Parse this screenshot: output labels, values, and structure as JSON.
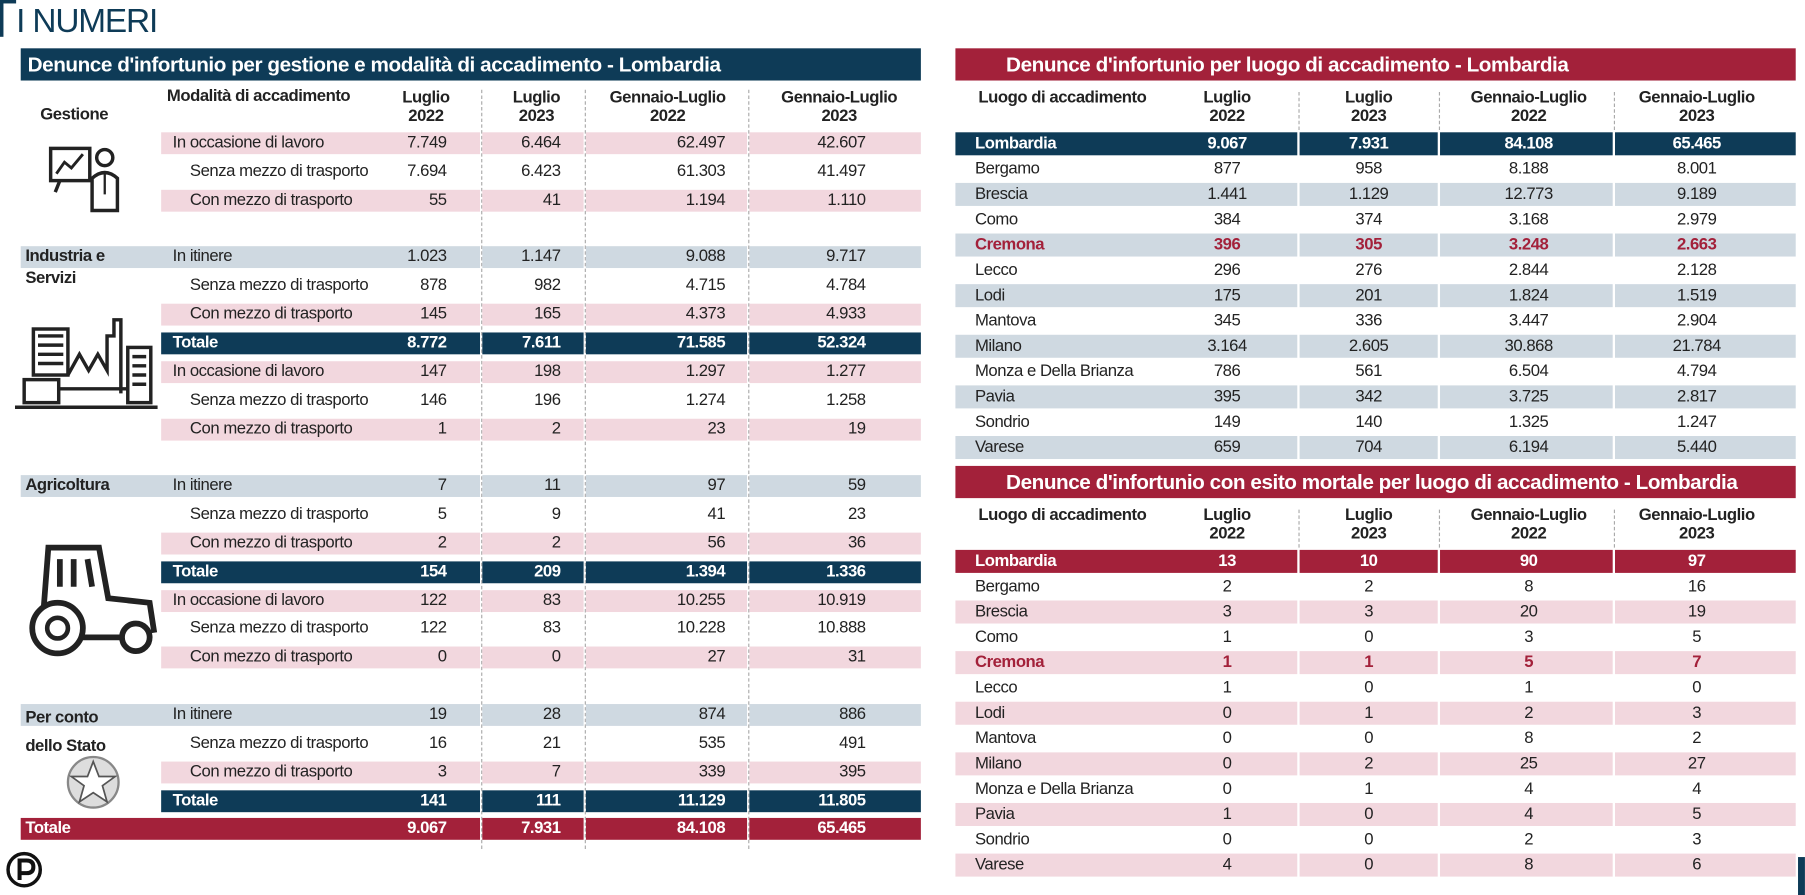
{
  "header": {
    "title": "I NUMERI"
  },
  "left_table": {
    "title": "Denunce d'infortunio per gestione e modalità di accadimento - Lombardia",
    "columns": [
      "Gestione",
      "Modalità di accadimento",
      "Luglio 2022",
      "Luglio 2023",
      "Gennaio-Luglio 2022",
      "Gennaio-Luglio 2023"
    ],
    "groups": [
      {
        "name": "Industria e Servizi",
        "rows": [
          {
            "label": "In occasione di lavoro",
            "values": [
              "7.749",
              "6.464",
              "62.497",
              "42.607"
            ]
          },
          {
            "label": "Senza mezzo di trasporto",
            "values": [
              "7.694",
              "6.423",
              "61.303",
              "41.497"
            ]
          },
          {
            "label": "Con mezzo di trasporto",
            "values": [
              "55",
              "41",
              "1.194",
              "1.110"
            ]
          },
          {
            "label": "In itinere",
            "values": [
              "1.023",
              "1.147",
              "9.088",
              "9.717"
            ]
          },
          {
            "label": "Senza mezzo di trasporto",
            "values": [
              "878",
              "982",
              "4.715",
              "4.784"
            ]
          },
          {
            "label": "Con mezzo di trasporto",
            "values": [
              "145",
              "165",
              "4.373",
              "4.933"
            ]
          }
        ],
        "total": {
          "label": "Totale",
          "values": [
            "8.772",
            "7.611",
            "71.585",
            "52.324"
          ]
        }
      },
      {
        "name": "Agricoltura",
        "rows": [
          {
            "label": "In occasione di lavoro",
            "values": [
              "147",
              "198",
              "1.297",
              "1.277"
            ]
          },
          {
            "label": "Senza mezzo di trasporto",
            "values": [
              "146",
              "196",
              "1.274",
              "1.258"
            ]
          },
          {
            "label": "Con mezzo di trasporto",
            "values": [
              "1",
              "2",
              "23",
              "19"
            ]
          },
          {
            "label": "In itinere",
            "values": [
              "7",
              "11",
              "97",
              "59"
            ]
          },
          {
            "label": "Senza mezzo di trasporto",
            "values": [
              "5",
              "9",
              "41",
              "23"
            ]
          },
          {
            "label": "Con mezzo di trasporto",
            "values": [
              "2",
              "2",
              "56",
              "36"
            ]
          }
        ],
        "total": {
          "label": "Totale",
          "values": [
            "154",
            "209",
            "1.394",
            "1.336"
          ]
        }
      },
      {
        "name": "Per conto dello Stato",
        "rows": [
          {
            "label": "In occasione di lavoro",
            "values": [
              "122",
              "83",
              "10.255",
              "10.919"
            ]
          },
          {
            "label": "Senza mezzo di trasporto",
            "values": [
              "122",
              "83",
              "10.228",
              "10.888"
            ]
          },
          {
            "label": "Con mezzo di trasporto",
            "values": [
              "0",
              "0",
              "27",
              "31"
            ]
          },
          {
            "label": "In itinere",
            "values": [
              "19",
              "28",
              "874",
              "886"
            ]
          },
          {
            "label": "Senza mezzo di trasporto",
            "values": [
              "16",
              "21",
              "535",
              "491"
            ]
          },
          {
            "label": "Con mezzo di trasporto",
            "values": [
              "3",
              "7",
              "339",
              "395"
            ]
          }
        ],
        "total": {
          "label": "Totale",
          "values": [
            "141",
            "111",
            "11.129",
            "11.805"
          ]
        }
      }
    ],
    "grand_total": {
      "label": "Totale",
      "values": [
        "9.067",
        "7.931",
        "84.108",
        "65.465"
      ]
    }
  },
  "right_tables": [
    {
      "title": "Denunce d'infortunio per luogo di accadimento - Lombardia",
      "title_color": "#a3213a",
      "first_row_color": "#0e3b57",
      "band_color": "#cfd9e1",
      "columns": [
        "Luogo di accadimento",
        "Luglio 2022",
        "Luglio 2023",
        "Gennaio-Luglio 2022",
        "Gennaio-Luglio 2023"
      ],
      "rows": [
        {
          "label": "Lombardia",
          "values": [
            "9.067",
            "7.931",
            "84.108",
            "65.465"
          ]
        },
        {
          "label": "Bergamo",
          "values": [
            "877",
            "958",
            "8.188",
            "8.001"
          ]
        },
        {
          "label": "Brescia",
          "values": [
            "1.441",
            "1.129",
            "12.773",
            "9.189"
          ]
        },
        {
          "label": "Como",
          "values": [
            "384",
            "374",
            "3.168",
            "2.979"
          ]
        },
        {
          "label": "Cremona",
          "values": [
            "396",
            "305",
            "3.248",
            "2.663"
          ],
          "color": "#a3213a"
        },
        {
          "label": "Lecco",
          "values": [
            "296",
            "276",
            "2.844",
            "2.128"
          ]
        },
        {
          "label": "Lodi",
          "values": [
            "175",
            "201",
            "1.824",
            "1.519"
          ]
        },
        {
          "label": "Mantova",
          "values": [
            "345",
            "336",
            "3.447",
            "2.904"
          ]
        },
        {
          "label": "Milano",
          "values": [
            "3.164",
            "2.605",
            "30.868",
            "21.784"
          ]
        },
        {
          "label": "Monza e Della Brianza",
          "values": [
            "786",
            "561",
            "6.504",
            "4.794"
          ]
        },
        {
          "label": "Pavia",
          "values": [
            "395",
            "342",
            "3.725",
            "2.817"
          ]
        },
        {
          "label": "Sondrio",
          "values": [
            "149",
            "140",
            "1.325",
            "1.247"
          ]
        },
        {
          "label": "Varese",
          "values": [
            "659",
            "704",
            "6.194",
            "5.440"
          ]
        }
      ]
    },
    {
      "title": "Denunce d'infortunio con esito mortale per luogo di accadimento - Lombardia",
      "title_color": "#a3213a",
      "first_row_color": "#a3213a",
      "band_color": "#f2d7de",
      "columns": [
        "Luogo di accadimento",
        "Luglio 2022",
        "Luglio 2023",
        "Gennaio-Luglio 2022",
        "Gennaio-Luglio 2023"
      ],
      "rows": [
        {
          "label": "Lombardia",
          "values": [
            "13",
            "10",
            "90",
            "97"
          ]
        },
        {
          "label": "Bergamo",
          "values": [
            "2",
            "2",
            "8",
            "16"
          ]
        },
        {
          "label": "Brescia",
          "values": [
            "3",
            "3",
            "20",
            "19"
          ]
        },
        {
          "label": "Como",
          "values": [
            "1",
            "0",
            "3",
            "5"
          ]
        },
        {
          "label": "Cremona",
          "values": [
            "1",
            "1",
            "5",
            "7"
          ],
          "color": "#a3213a"
        },
        {
          "label": "Lecco",
          "values": [
            "1",
            "0",
            "1",
            "0"
          ]
        },
        {
          "label": "Lodi",
          "values": [
            "0",
            "1",
            "2",
            "3"
          ]
        },
        {
          "label": "Mantova",
          "values": [
            "0",
            "0",
            "8",
            "2"
          ]
        },
        {
          "label": "Milano",
          "values": [
            "0",
            "2",
            "25",
            "27"
          ]
        },
        {
          "label": "Monza e Della Brianza",
          "values": [
            "0",
            "1",
            "4",
            "4"
          ]
        },
        {
          "label": "Pavia",
          "values": [
            "1",
            "0",
            "4",
            "5"
          ]
        },
        {
          "label": "Sondrio",
          "values": [
            "0",
            "0",
            "2",
            "3"
          ]
        },
        {
          "label": "Varese",
          "values": [
            "4",
            "0",
            "8",
            "6"
          ]
        }
      ]
    }
  ]
}
